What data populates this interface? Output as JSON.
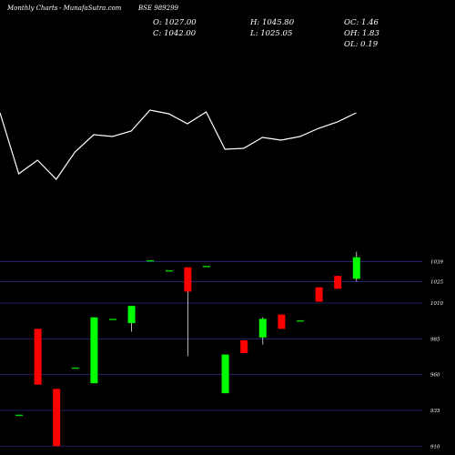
{
  "header": {
    "source": "Monthly Charts",
    "site": "MunafaSutra.com",
    "symbol": "BSE 989299"
  },
  "stats": {
    "open": "O: 1027.00",
    "close": "C: 1042.00",
    "high": "H: 1045.80",
    "low": "L: 1025.05",
    "oc": "OC: 1.46",
    "oh": "OH: 1.83",
    "ol": "OL: 0.19"
  },
  "colors": {
    "background": "#000000",
    "up": "#00ff00",
    "down": "#ff0000",
    "neutral": "#00cc00",
    "grid": "#2a2a7a",
    "line": "#ffffff"
  },
  "chart_data": {
    "type": "candlestick",
    "yticks": [
      910,
      935,
      960,
      985,
      1010,
      1025,
      1039
    ],
    "ylim": [
      907,
      1045
    ],
    "candles": [
      {
        "open": 932,
        "high": 932,
        "low": 932,
        "close": 932
      },
      {
        "open": 992,
        "high": 992,
        "low": 953,
        "close": 953
      },
      {
        "open": 950,
        "high": 950,
        "low": 910,
        "close": 910
      },
      {
        "open": 965,
        "high": 965,
        "low": 965,
        "close": 965
      },
      {
        "open": 954,
        "high": 1000,
        "low": 954,
        "close": 1000
      },
      {
        "open": 999,
        "high": 999,
        "low": 999,
        "close": 999
      },
      {
        "open": 996,
        "high": 1008,
        "low": 990,
        "close": 1008
      },
      {
        "open": 1040,
        "high": 1040,
        "low": 1040,
        "close": 1040
      },
      {
        "open": 1033,
        "high": 1033,
        "low": 1033,
        "close": 1033
      },
      {
        "open": 1035,
        "high": 1035,
        "low": 973,
        "close": 1018
      },
      {
        "open": 1036,
        "high": 1036,
        "low": 1036,
        "close": 1036
      },
      {
        "open": 947,
        "high": 974,
        "low": 947,
        "close": 974
      },
      {
        "open": 984,
        "high": 984,
        "low": 975,
        "close": 975
      },
      {
        "open": 986,
        "high": 1000,
        "low": 981,
        "close": 999
      },
      {
        "open": 1002,
        "high": 1002,
        "low": 992,
        "close": 992
      },
      {
        "open": 998,
        "high": 998,
        "low": 998,
        "close": 998
      },
      {
        "open": 1021,
        "high": 1021,
        "low": 1011,
        "close": 1011
      },
      {
        "open": 1029,
        "high": 1029,
        "low": 1020,
        "close": 1020
      },
      {
        "open": 1027,
        "high": 1045.8,
        "low": 1025.05,
        "close": 1042
      }
    ],
    "line_values": [
      124,
      191,
      176,
      197,
      167,
      148,
      150,
      144,
      121,
      125,
      136,
      123,
      164,
      163,
      151,
      154,
      150,
      141,
      134,
      124
    ]
  }
}
